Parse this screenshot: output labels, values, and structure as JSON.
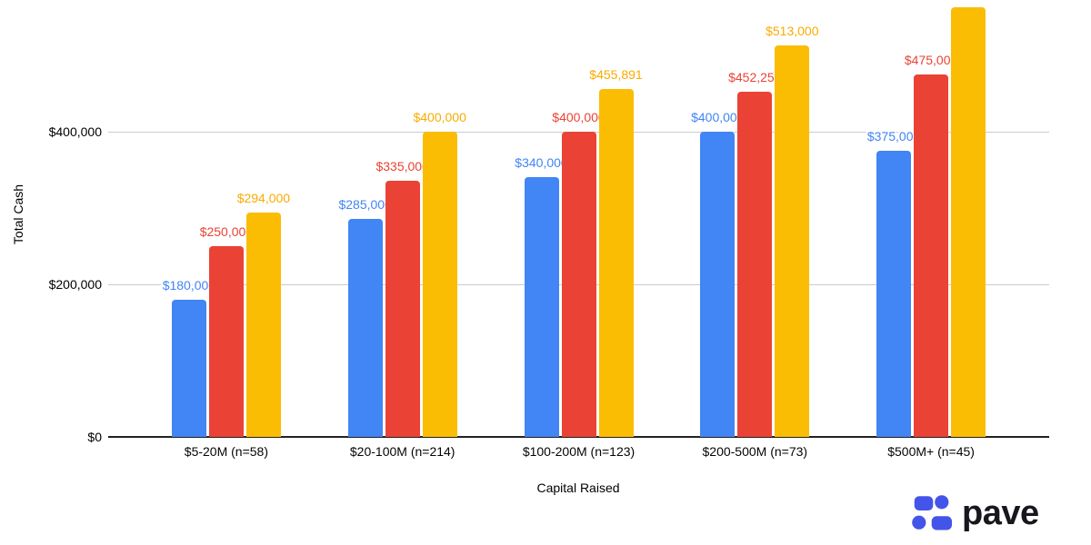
{
  "chart_data": {
    "type": "bar",
    "title": "",
    "xlabel": "Capital Raised",
    "ylabel": "Total Cash",
    "categories": [
      "$5-20M (n=58)",
      "$20-100M (n=214)",
      "$100-200M (n=123)",
      "$200-500M (n=73)",
      "$500M+ (n=45)"
    ],
    "series": [
      {
        "name": "blue",
        "color": "#4285F4",
        "values": [
          180000,
          285000,
          340000,
          400000,
          375000
        ],
        "labels": [
          "$180,000",
          "$285,000",
          "$340,000",
          "$400,000",
          "$375,000"
        ]
      },
      {
        "name": "red",
        "color": "#EA4335",
        "values": [
          250000,
          335000,
          400000,
          452250,
          475000
        ],
        "labels": [
          "$250,000",
          "$335,000",
          "$400,000",
          "$452,250",
          "$475,000"
        ]
      },
      {
        "name": "yellow",
        "color": "#FBBC04",
        "label_color": "#F9AB00",
        "values": [
          294000,
          400000,
          455891,
          513000,
          562000
        ],
        "labels": [
          "$294,000",
          "$400,000",
          "$455,891",
          "$513,000",
          ""
        ]
      }
    ],
    "y_ticks": [
      {
        "value": 0,
        "label": "$0"
      },
      {
        "value": 200000,
        "label": "$200,000"
      },
      {
        "value": 400000,
        "label": "$400,000"
      }
    ],
    "ylim": [
      0,
      572000
    ],
    "grid": "horizontal",
    "legend": "none"
  },
  "branding": {
    "logo_text": "pave",
    "logo_color": "#4355E9",
    "wordmark_color": "#17171d"
  },
  "colors": {
    "gridline": "#cccccc",
    "axis": "#212121",
    "background": "#ffffff"
  }
}
